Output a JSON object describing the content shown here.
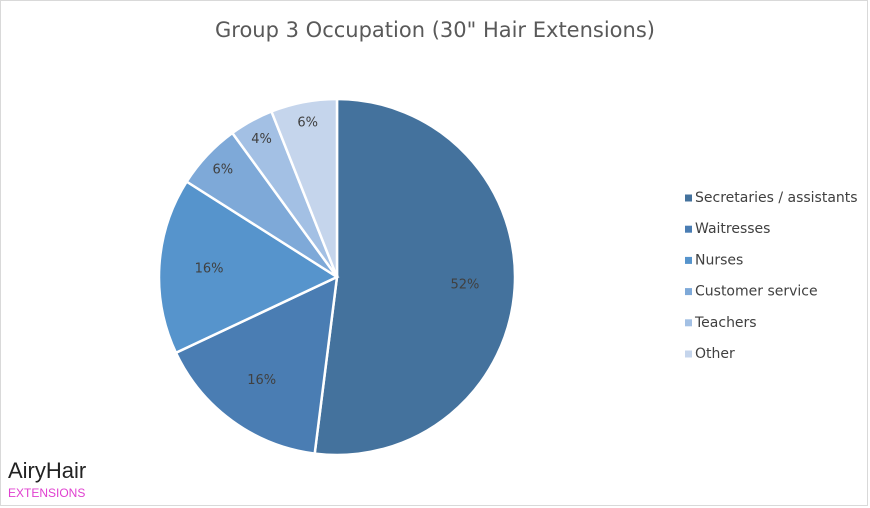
{
  "chart_data": {
    "type": "pie",
    "title": "Group 3 Occupation (30\" Hair Extensions)",
    "categories": [
      "Secretaries / assistants",
      "Waitresses",
      "Nurses",
      "Customer service",
      "Teachers",
      "Other"
    ],
    "values": [
      52,
      16,
      16,
      6,
      4,
      6
    ],
    "value_labels": [
      "52%",
      "16%",
      "16%",
      "6%",
      "4%",
      "6%"
    ],
    "colors": [
      "#44729d",
      "#4a7db3",
      "#5694cc",
      "#7ea9d8",
      "#a3c0e4",
      "#c5d5ec"
    ],
    "legend": "right"
  },
  "watermark": {
    "name": "AiryHair",
    "tagline": "EXTENSIONS"
  }
}
